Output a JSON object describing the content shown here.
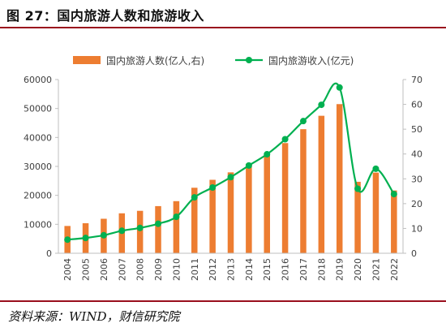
{
  "figure": {
    "title": "图 27：国内旅游人数和旅游收入",
    "source": "资料来源：WIND，财信研究院"
  },
  "colors": {
    "bar": "#ed7d31",
    "line": "#00b050",
    "axis": "#bfbfbf",
    "rule": "#9a0f1d"
  },
  "chart_data": {
    "type": "bar+line",
    "categories": [
      "2004",
      "2005",
      "2006",
      "2007",
      "2008",
      "2009",
      "2010",
      "2011",
      "2012",
      "2013",
      "2014",
      "2015",
      "2016",
      "2017",
      "2018",
      "2019",
      "2020",
      "2021",
      "2022"
    ],
    "series": [
      {
        "name": "国内旅游人数(亿人,右)",
        "type": "bar",
        "axis": "right",
        "values": [
          11.0,
          12.1,
          13.9,
          16.1,
          17.1,
          19.0,
          21.0,
          26.4,
          29.6,
          32.6,
          36.1,
          40.0,
          44.4,
          50.0,
          55.4,
          60.1,
          28.8,
          32.5,
          25.3
        ]
      },
      {
        "name": "国内旅游收入(亿元)",
        "type": "line",
        "axis": "left",
        "values": [
          4711,
          5286,
          6230,
          7771,
          8749,
          10184,
          12580,
          19305,
          22706,
          26276,
          30312,
          34195,
          39390,
          45661,
          51278,
          57251,
          22286,
          29191,
          20444
        ]
      }
    ],
    "left_axis": {
      "min": 0,
      "max": 60000,
      "ticks": [
        "0",
        "10000",
        "20000",
        "30000",
        "40000",
        "50000",
        "60000"
      ]
    },
    "right_axis": {
      "min": 0,
      "max": 70,
      "ticks": [
        "0",
        "10",
        "20",
        "30",
        "40",
        "50",
        "60",
        "70"
      ]
    },
    "legend_position": "top",
    "grid": false
  }
}
